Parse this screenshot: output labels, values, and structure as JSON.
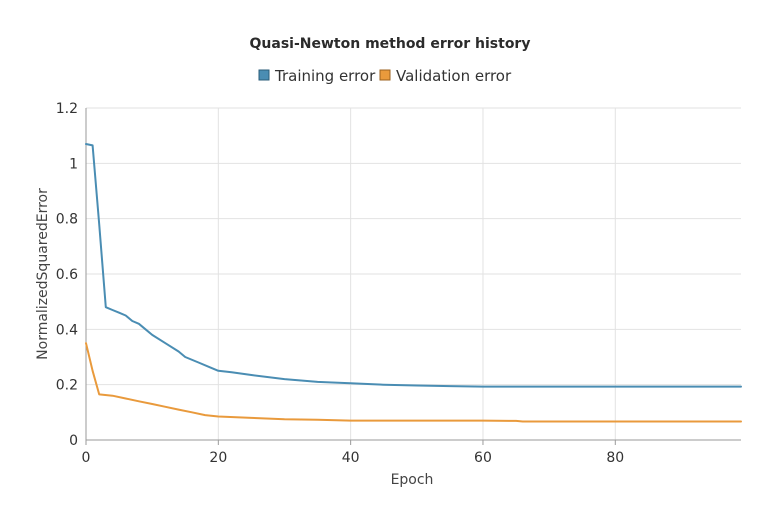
{
  "chart_data": {
    "type": "line",
    "title": "Quasi-Newton method error history",
    "xlabel": "Epoch",
    "ylabel": "NormalizedSquaredError",
    "xlim": [
      0,
      99
    ],
    "ylim": [
      0,
      1.2
    ],
    "x_ticks": [
      0,
      20,
      40,
      60,
      80
    ],
    "y_ticks": [
      0,
      0.2,
      0.4,
      0.6,
      0.8,
      1,
      1.2
    ],
    "x_tick_labels": [
      "0",
      "20",
      "40",
      "60",
      "80"
    ],
    "y_tick_labels": [
      "0",
      "0.2",
      "0.4",
      "0.6",
      "0.8",
      "1",
      "1.2"
    ],
    "grid": true,
    "legend_position": "top-center",
    "series": [
      {
        "name": "Training error",
        "color": "#4a8db3",
        "x": [
          0,
          1,
          2,
          3,
          4,
          5,
          6,
          7,
          8,
          9,
          10,
          12,
          14,
          15,
          17,
          19,
          20,
          22,
          25,
          30,
          35,
          40,
          45,
          50,
          55,
          60,
          70,
          80,
          90,
          99
        ],
        "y": [
          1.07,
          1.065,
          0.78,
          0.48,
          0.47,
          0.46,
          0.45,
          0.43,
          0.42,
          0.4,
          0.38,
          0.35,
          0.32,
          0.3,
          0.28,
          0.26,
          0.25,
          0.245,
          0.235,
          0.22,
          0.21,
          0.205,
          0.2,
          0.197,
          0.195,
          0.193,
          0.193,
          0.193,
          0.193,
          0.193
        ]
      },
      {
        "name": "Validation error",
        "color": "#e99a3c",
        "x": [
          0,
          1,
          2,
          4,
          6,
          8,
          10,
          12,
          14,
          16,
          18,
          20,
          25,
          30,
          35,
          40,
          50,
          60,
          65,
          66,
          80,
          99
        ],
        "y": [
          0.35,
          0.25,
          0.165,
          0.16,
          0.15,
          0.14,
          0.13,
          0.12,
          0.11,
          0.1,
          0.09,
          0.085,
          0.08,
          0.075,
          0.073,
          0.07,
          0.07,
          0.07,
          0.069,
          0.067,
          0.067,
          0.067
        ]
      }
    ]
  }
}
